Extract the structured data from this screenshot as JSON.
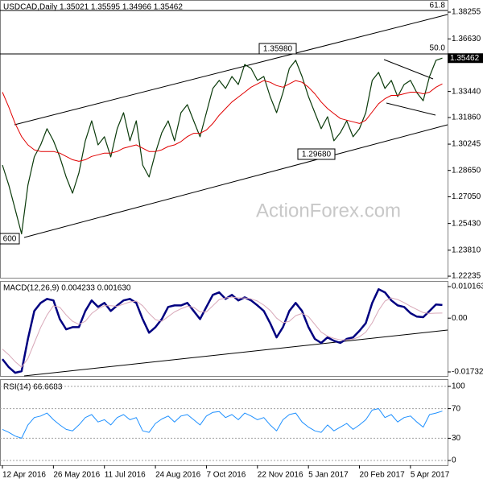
{
  "chart_data": [
    {
      "type": "line",
      "title": "USDCAD,Daily  1.35021 1.35595 1.34966 1.35462",
      "ylim": [
        1.2214,
        1.3899
      ],
      "yticks": [
        1.38255,
        {
          "value": 1.3663,
          "label": "1.36630"
        },
        {
          "value": 1.3344,
          "label": "1.33440"
        },
        {
          "value": 1.3186,
          "label": "1.31860"
        },
        1.30245,
        {
          "value": 1.2865,
          "label": "1.28650"
        },
        {
          "value": 1.2705,
          "label": "1.27050"
        },
        {
          "value": 1.2543,
          "label": "1.25430"
        },
        {
          "value": 1.2381,
          "label": "1.23810"
        },
        1.22235
      ],
      "series": [
        {
          "name": "USDCAD",
          "color": "#0a3a0a",
          "values": [
            1.2898,
            1.2776,
            1.263,
            1.248,
            1.2776,
            1.2947,
            1.302,
            1.3118,
            1.3045,
            1.2947,
            1.2825,
            1.2727,
            1.285,
            1.3045,
            1.3166,
            1.302,
            1.3069,
            1.2947,
            1.3118,
            1.3215,
            1.3045,
            1.3166,
            1.2898,
            1.2825,
            1.2972,
            1.3094,
            1.3166,
            1.3045,
            1.3215,
            1.3264,
            1.3166,
            1.3069,
            1.3215,
            1.3362,
            1.3411,
            1.3362,
            1.3435,
            1.3386,
            1.3508,
            1.3484,
            1.3411,
            1.3435,
            1.3313,
            1.3215,
            1.3337,
            1.3484,
            1.3533,
            1.3435,
            1.3313,
            1.3215,
            1.3118,
            1.3191,
            1.3045,
            1.3094,
            1.3166,
            1.3069,
            1.3118,
            1.3215,
            1.3411,
            1.346,
            1.3362,
            1.3411,
            1.3313,
            1.3386,
            1.3411,
            1.3337,
            1.3288,
            1.3435,
            1.3533,
            1.35462
          ]
        },
        {
          "name": "MA",
          "color": "#e00000",
          "values": [
            1.334,
            1.325,
            1.315,
            1.307,
            1.302,
            1.299,
            1.298,
            1.298,
            1.298,
            1.297,
            1.295,
            1.293,
            1.292,
            1.293,
            1.295,
            1.296,
            1.297,
            1.297,
            1.298,
            1.3,
            1.301,
            1.302,
            1.3,
            1.298,
            1.298,
            1.299,
            1.301,
            1.302,
            1.304,
            1.307,
            1.309,
            1.309,
            1.311,
            1.315,
            1.32,
            1.324,
            1.328,
            1.331,
            1.334,
            1.337,
            1.339,
            1.341,
            1.34,
            1.338,
            1.337,
            1.339,
            1.341,
            1.34,
            1.337,
            1.333,
            1.328,
            1.324,
            1.321,
            1.318,
            1.317,
            1.316,
            1.315,
            1.317,
            1.322,
            1.327,
            1.33,
            1.332,
            1.332,
            1.333,
            1.334,
            1.334,
            1.333,
            1.334,
            1.337,
            1.339
          ]
        }
      ],
      "last_price_label": "1.35462",
      "annotations": [
        "1.35980",
        "1.29680",
        "600"
      ],
      "fib_labels": [
        "61.8",
        "50.0"
      ],
      "watermark": "ActionForex.com"
    },
    {
      "type": "line",
      "title": "MACD(12,26,9) 0.004233 0.001630",
      "ylim": [
        -0.01862,
        0.01198
      ],
      "yticks": [
        0.010163,
        {
          "value": 0,
          "label": "0.00"
        },
        -0.017321
      ],
      "series": [
        {
          "name": "MACD",
          "color": "#000080",
          "values": [
            -0.0132,
            -0.0158,
            -0.0176,
            -0.0171,
            -0.0067,
            0.0023,
            0.0049,
            0.0062,
            0.0057,
            -0.0003,
            -0.0036,
            -0.0029,
            -0.0029,
            0.0023,
            0.0057,
            0.0036,
            0.0049,
            0.0023,
            0.0041,
            0.0057,
            0.0062,
            0.0049,
            -0.0003,
            -0.0047,
            -0.0029,
            -0.0003,
            0.0036,
            0.0041,
            0.0041,
            0.0049,
            0.0023,
            -0.0003,
            0.0036,
            0.0075,
            0.0083,
            0.0062,
            0.0075,
            0.0057,
            0.0067,
            0.0057,
            0.0041,
            0.0023,
            -0.0016,
            -0.0062,
            -0.0029,
            0.0023,
            0.0049,
            0.0023,
            -0.0029,
            -0.0067,
            -0.008,
            -0.0062,
            -0.0073,
            -0.008,
            -0.0067,
            -0.0062,
            -0.0041,
            -0.0016,
            0.0049,
            0.0093,
            0.0083,
            0.0057,
            0.0041,
            0.0036,
            0.0016,
            0.0005,
            0.0003,
            0.0023,
            0.0044,
            0.004233
          ]
        },
        {
          "name": "Signal",
          "color": "#d8a8b8",
          "values": [
            -0.01,
            -0.0118,
            -0.014,
            -0.0158,
            -0.013,
            -0.008,
            -0.003,
            0.001,
            0.004,
            0.0035,
            0.001,
            -0.001,
            -0.002,
            -0.001,
            0.0015,
            0.003,
            0.004,
            0.004,
            0.0038,
            0.0045,
            0.0052,
            0.0055,
            0.004,
            0.0015,
            -0.0005,
            -0.001,
            0.0005,
            0.002,
            0.003,
            0.0038,
            0.0035,
            0.002,
            0.002,
            0.004,
            0.006,
            0.0065,
            0.0068,
            0.0065,
            0.0065,
            0.0062,
            0.0055,
            0.0042,
            0.0025,
            0.0,
            -0.0015,
            -0.001,
            0.0008,
            0.0015,
            0.0005,
            -0.002,
            -0.0045,
            -0.0058,
            -0.0065,
            -0.007,
            -0.007,
            -0.0068,
            -0.006,
            -0.0045,
            -0.0015,
            0.0025,
            0.0055,
            0.0065,
            0.006,
            0.005,
            0.0038,
            0.0028,
            0.0018,
            0.0015,
            0.0016,
            0.00163
          ]
        }
      ]
    },
    {
      "type": "line",
      "title": "RSI(14) 66.6683",
      "ylim": [
        -6.5,
        108.7
      ],
      "yticks": [
        100,
        70,
        30,
        0
      ],
      "grid": true,
      "categories": [
        "12 Apr 2016",
        null,
        null,
        null,
        null,
        null,
        null,
        null,
        "26 May 2016",
        null,
        null,
        null,
        null,
        null,
        null,
        null,
        "11 Jul 2016",
        null,
        null,
        null,
        null,
        null,
        null,
        null,
        "24 Aug 2016",
        null,
        null,
        null,
        null,
        null,
        null,
        null,
        "7 Oct 2016",
        null,
        null,
        null,
        null,
        null,
        null,
        null,
        "22 Nov 2016",
        null,
        null,
        null,
        null,
        null,
        null,
        null,
        "5 Jan 2017",
        null,
        null,
        null,
        null,
        null,
        null,
        null,
        "20 Feb 2017",
        null,
        null,
        null,
        null,
        null,
        null,
        null,
        "5 Apr 2017",
        null,
        null,
        null,
        null,
        null
      ],
      "series": [
        {
          "name": "RSI",
          "color": "#1e90ff",
          "values": [
            42,
            38,
            33,
            30,
            48,
            58,
            60,
            64,
            55,
            48,
            42,
            40,
            48,
            58,
            62,
            52,
            55,
            48,
            58,
            62,
            55,
            58,
            40,
            38,
            50,
            56,
            60,
            52,
            60,
            62,
            55,
            48,
            60,
            65,
            66,
            58,
            62,
            55,
            64,
            60,
            55,
            58,
            48,
            40,
            55,
            62,
            64,
            52,
            45,
            40,
            38,
            48,
            40,
            45,
            50,
            42,
            48,
            55,
            68,
            70,
            58,
            62,
            52,
            58,
            60,
            52,
            45,
            62,
            64,
            66.6683
          ]
        }
      ]
    }
  ]
}
